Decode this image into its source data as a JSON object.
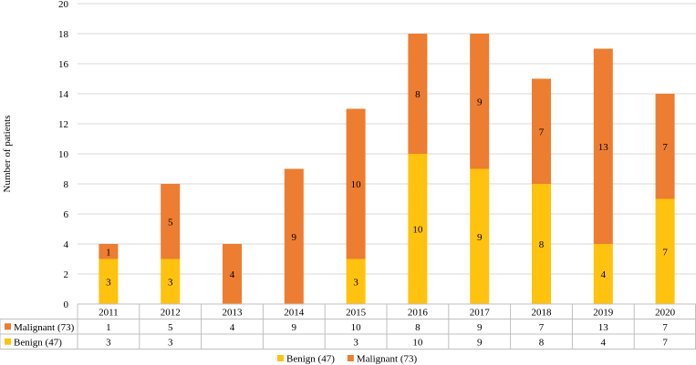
{
  "chart_data": {
    "type": "bar",
    "stacked": true,
    "title": "",
    "xlabel": "",
    "ylabel": "Number of patients",
    "ylim": [
      0,
      20
    ],
    "yticks": [
      0,
      2,
      4,
      6,
      8,
      10,
      12,
      14,
      16,
      18,
      20
    ],
    "grid": true,
    "legend_position": "bottom",
    "categories": [
      "2011",
      "2012",
      "2013",
      "2014",
      "2015",
      "2016",
      "2017",
      "2018",
      "2019",
      "2020"
    ],
    "series": [
      {
        "name": "Benign (47)",
        "color": "#FFC20E",
        "values": [
          3,
          3,
          0,
          0,
          3,
          10,
          9,
          8,
          4,
          7
        ],
        "table_values": [
          "3",
          "3",
          "",
          "",
          "3",
          "10",
          "9",
          "8",
          "4",
          "7"
        ]
      },
      {
        "name": "Malignant (73)",
        "color": "#ED7D31",
        "values": [
          1,
          5,
          4,
          9,
          10,
          8,
          9,
          7,
          13,
          7
        ],
        "table_values": [
          "1",
          "5",
          "4",
          "9",
          "10",
          "8",
          "9",
          "7",
          "13",
          "7"
        ]
      }
    ],
    "table_rows_order": [
      "Malignant (73)",
      "Benign (47)"
    ],
    "legend_order": [
      "Benign (47)",
      "Malignant (73)"
    ]
  }
}
